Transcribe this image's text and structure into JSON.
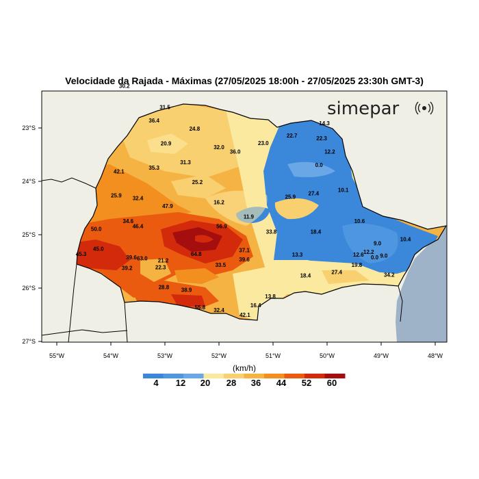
{
  "title": "Velocidade da Rajada - Máximas (27/05/2025 18:00h - 27/05/2025 23:30h GMT-3)",
  "brand": "simepar",
  "brand_icon": "radio-wave-icon",
  "lon_labels": [
    "55°W",
    "54°W",
    "53°W",
    "52°W",
    "51°W",
    "50°W",
    "49°W",
    "48°W"
  ],
  "lat_labels": [
    "23°S",
    "24°S",
    "25°S",
    "26°S",
    "27°S"
  ],
  "colorbar": {
    "unit": "(km/h)",
    "tick_labels": [
      "4",
      "12",
      "20",
      "28",
      "36",
      "44",
      "52",
      "60"
    ],
    "colors": [
      "#3b87d9",
      "#4f96e0",
      "#6aa7e6",
      "#fbe9a0",
      "#f9d070",
      "#f5b343",
      "#f28f1e",
      "#ea5b0f",
      "#d42a0c",
      "#a50e0e"
    ]
  },
  "colors": {
    "ocean": "#9fb3c8",
    "land": "#efefe6",
    "frame": "#000000"
  },
  "chart_data": {
    "type": "contour-map",
    "variable": "Velocidade da Rajada - Máximas",
    "unit": "km/h",
    "color_scale": [
      4,
      12,
      20,
      28,
      36,
      44,
      52,
      60
    ],
    "stations": [
      {
        "lon": -53.0,
        "lat": -22.65,
        "label": "31.5"
      },
      {
        "lon": -53.75,
        "lat": -22.25,
        "label": "30.2"
      },
      {
        "lon": -53.2,
        "lat": -22.9,
        "label": "36.4"
      },
      {
        "lon": -52.45,
        "lat": -23.05,
        "label": "24.8"
      },
      {
        "lon": -52.98,
        "lat": -23.33,
        "label": "20.9"
      },
      {
        "lon": -52.0,
        "lat": -23.4,
        "label": "32.0"
      },
      {
        "lon": -51.7,
        "lat": -23.48,
        "label": "36.0"
      },
      {
        "lon": -51.18,
        "lat": -23.32,
        "label": "23.0"
      },
      {
        "lon": -50.65,
        "lat": -23.18,
        "label": "22.7"
      },
      {
        "lon": -50.05,
        "lat": -22.95,
        "label": "14.3"
      },
      {
        "lon": -50.1,
        "lat": -23.23,
        "label": "22.3"
      },
      {
        "lon": -49.95,
        "lat": -23.48,
        "label": "12.2"
      },
      {
        "lon": -50.15,
        "lat": -23.73,
        "label": "0.0"
      },
      {
        "lon": -53.85,
        "lat": -23.85,
        "label": "42.1"
      },
      {
        "lon": -53.2,
        "lat": -23.78,
        "label": "35.3"
      },
      {
        "lon": -52.62,
        "lat": -23.68,
        "label": "31.3"
      },
      {
        "lon": -52.4,
        "lat": -24.05,
        "label": "25.2"
      },
      {
        "lon": -53.9,
        "lat": -24.3,
        "label": "25.9"
      },
      {
        "lon": -53.5,
        "lat": -24.35,
        "label": "32.4"
      },
      {
        "lon": -52.95,
        "lat": -24.5,
        "label": "47.9"
      },
      {
        "lon": -52.0,
        "lat": -24.43,
        "label": "16.2"
      },
      {
        "lon": -50.68,
        "lat": -24.33,
        "label": "25.9"
      },
      {
        "lon": -50.25,
        "lat": -24.26,
        "label": "27.4"
      },
      {
        "lon": -49.7,
        "lat": -24.2,
        "label": "10.1"
      },
      {
        "lon": -51.45,
        "lat": -24.7,
        "label": "11.9"
      },
      {
        "lon": -53.68,
        "lat": -24.78,
        "label": "34.6"
      },
      {
        "lon": -53.5,
        "lat": -24.88,
        "label": "46.4"
      },
      {
        "lon": -54.27,
        "lat": -24.93,
        "label": "50.0"
      },
      {
        "lon": -51.95,
        "lat": -24.88,
        "label": "56.9"
      },
      {
        "lon": -49.4,
        "lat": -24.78,
        "label": "10.6"
      },
      {
        "lon": -51.03,
        "lat": -24.98,
        "label": "33.8"
      },
      {
        "lon": -50.21,
        "lat": -24.98,
        "label": "18.4"
      },
      {
        "lon": -54.23,
        "lat": -25.3,
        "label": "45.0"
      },
      {
        "lon": -54.55,
        "lat": -25.4,
        "label": "45.3"
      },
      {
        "lon": -51.53,
        "lat": -25.33,
        "label": "37.1"
      },
      {
        "lon": -52.42,
        "lat": -25.4,
        "label": "64.8"
      },
      {
        "lon": -53.62,
        "lat": -25.46,
        "label": "39.6"
      },
      {
        "lon": -53.42,
        "lat": -25.48,
        "label": "63.0"
      },
      {
        "lon": -53.03,
        "lat": -25.52,
        "label": "21.2"
      },
      {
        "lon": -51.53,
        "lat": -25.5,
        "label": "39.6"
      },
      {
        "lon": -50.55,
        "lat": -25.41,
        "label": "13.3"
      },
      {
        "lon": -53.7,
        "lat": -25.66,
        "label": "39.2"
      },
      {
        "lon": -53.08,
        "lat": -25.65,
        "label": "22.3"
      },
      {
        "lon": -51.97,
        "lat": -25.6,
        "label": "33.5"
      },
      {
        "lon": -49.07,
        "lat": -25.2,
        "label": "9.0"
      },
      {
        "lon": -48.55,
        "lat": -25.12,
        "label": "10.4"
      },
      {
        "lon": -49.23,
        "lat": -25.36,
        "label": "12.2"
      },
      {
        "lon": -49.42,
        "lat": -25.41,
        "label": "12.6"
      },
      {
        "lon": -48.95,
        "lat": -25.43,
        "label": "9.0"
      },
      {
        "lon": -49.12,
        "lat": -25.46,
        "label": "0.0"
      },
      {
        "lon": -49.45,
        "lat": -25.6,
        "label": "19.8"
      },
      {
        "lon": -50.4,
        "lat": -25.8,
        "label": "18.4"
      },
      {
        "lon": -49.82,
        "lat": -25.74,
        "label": "27.4"
      },
      {
        "lon": -48.85,
        "lat": -25.79,
        "label": "34.2"
      },
      {
        "lon": -53.02,
        "lat": -26.02,
        "label": "28.8"
      },
      {
        "lon": -52.6,
        "lat": -26.07,
        "label": "38.9"
      },
      {
        "lon": -52.35,
        "lat": -26.4,
        "label": "55.8"
      },
      {
        "lon": -52.0,
        "lat": -26.45,
        "label": "32.4"
      },
      {
        "lon": -51.05,
        "lat": -26.19,
        "label": "13.8"
      },
      {
        "lon": -51.32,
        "lat": -26.36,
        "label": "16.4"
      },
      {
        "lon": -51.52,
        "lat": -26.54,
        "label": "42.1"
      }
    ]
  }
}
